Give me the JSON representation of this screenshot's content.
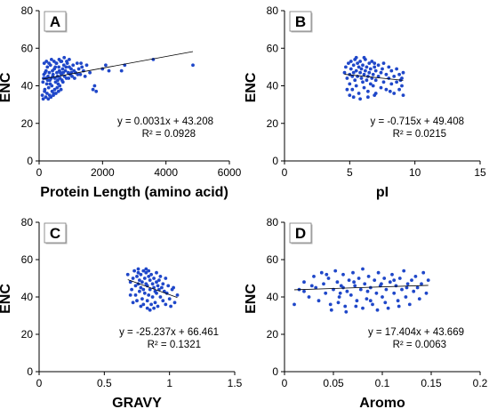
{
  "chart_data": [
    {
      "type": "scatter",
      "panel": "A",
      "ylabel": "ENC",
      "xlabel": "Protein Length (amino acid)",
      "xlim": [
        0,
        6000
      ],
      "xticks": [
        0,
        2000,
        4000,
        6000
      ],
      "ylim": [
        0,
        80
      ],
      "yticks": [
        0,
        20,
        40,
        60,
        80
      ],
      "grid": false,
      "equation": "y = 0.0031x + 43.208",
      "r2": "R² = 0.0928",
      "trendline": {
        "slope": 0.0031,
        "intercept": 43.208
      },
      "points": [
        [
          120,
          42
        ],
        [
          150,
          46
        ],
        [
          180,
          38
        ],
        [
          200,
          44
        ],
        [
          220,
          48
        ],
        [
          240,
          41
        ],
        [
          260,
          50
        ],
        [
          280,
          45
        ],
        [
          300,
          39
        ],
        [
          320,
          47
        ],
        [
          340,
          43
        ],
        [
          360,
          51
        ],
        [
          380,
          44
        ],
        [
          400,
          40
        ],
        [
          420,
          48
        ],
        [
          440,
          46
        ],
        [
          460,
          36
        ],
        [
          480,
          49
        ],
        [
          500,
          44
        ],
        [
          520,
          42
        ],
        [
          540,
          52
        ],
        [
          560,
          47
        ],
        [
          580,
          45
        ],
        [
          600,
          41
        ],
        [
          620,
          50
        ],
        [
          640,
          48
        ],
        [
          660,
          44
        ],
        [
          680,
          53
        ],
        [
          700,
          46
        ],
        [
          720,
          43
        ],
        [
          740,
          49
        ],
        [
          760,
          47
        ],
        [
          780,
          51
        ],
        [
          800,
          45
        ],
        [
          830,
          48
        ],
        [
          860,
          44
        ],
        [
          890,
          52
        ],
        [
          920,
          47
        ],
        [
          950,
          50
        ],
        [
          980,
          46
        ],
        [
          1010,
          49
        ],
        [
          1040,
          45
        ],
        [
          1070,
          51
        ],
        [
          1100,
          48
        ],
        [
          1150,
          47
        ],
        [
          1200,
          52
        ],
        [
          1250,
          49
        ],
        [
          1300,
          46
        ],
        [
          1350,
          50
        ],
        [
          1400,
          48
        ],
        [
          1500,
          51
        ],
        [
          1600,
          47
        ],
        [
          1700,
          38
        ],
        [
          1750,
          40
        ],
        [
          1800,
          37
        ],
        [
          2000,
          49
        ],
        [
          2100,
          51
        ],
        [
          2200,
          48
        ],
        [
          2600,
          48
        ],
        [
          2700,
          51
        ],
        [
          3600,
          54
        ],
        [
          4850,
          51
        ],
        [
          100,
          35
        ],
        [
          130,
          33
        ],
        [
          170,
          37
        ],
        [
          210,
          34
        ],
        [
          250,
          36
        ],
        [
          290,
          33
        ],
        [
          330,
          35
        ],
        [
          370,
          34
        ],
        [
          410,
          37
        ],
        [
          450,
          35
        ],
        [
          490,
          38
        ],
        [
          530,
          36
        ],
        [
          570,
          39
        ],
        [
          610,
          37
        ],
        [
          650,
          40
        ],
        [
          690,
          38
        ],
        [
          160,
          52
        ],
        [
          230,
          53
        ],
        [
          310,
          52
        ],
        [
          390,
          54
        ],
        [
          470,
          53
        ],
        [
          550,
          52
        ],
        [
          630,
          54
        ],
        [
          710,
          53
        ],
        [
          790,
          55
        ],
        [
          870,
          53
        ],
        [
          950,
          54
        ],
        [
          140,
          44
        ],
        [
          190,
          47
        ],
        [
          270,
          43
        ],
        [
          350,
          41
        ],
        [
          430,
          45
        ],
        [
          510,
          50
        ],
        [
          590,
          43
        ],
        [
          670,
          47
        ],
        [
          750,
          42
        ],
        [
          850,
          50
        ],
        [
          930,
          44
        ],
        [
          1020,
          47
        ],
        [
          1120,
          44
        ],
        [
          1220,
          46
        ],
        [
          1320,
          52
        ],
        [
          1450,
          45
        ]
      ]
    },
    {
      "type": "scatter",
      "panel": "B",
      "ylabel": "ENC",
      "xlabel": "pI",
      "xlim": [
        0,
        15
      ],
      "xticks": [
        0,
        5,
        10,
        15
      ],
      "ylim": [
        0,
        80
      ],
      "yticks": [
        0,
        20,
        40,
        60,
        80
      ],
      "grid": false,
      "equation": "y = -0.715x + 49.408",
      "r2": "R² = 0.0215",
      "trendline": {
        "slope": -0.715,
        "intercept": 49.408
      },
      "points": [
        [
          4.6,
          47
        ],
        [
          4.7,
          50
        ],
        [
          4.8,
          44
        ],
        [
          4.9,
          52
        ],
        [
          5.0,
          46
        ],
        [
          5.0,
          41
        ],
        [
          5.1,
          49
        ],
        [
          5.1,
          53
        ],
        [
          5.2,
          45
        ],
        [
          5.2,
          38
        ],
        [
          5.3,
          51
        ],
        [
          5.3,
          47
        ],
        [
          5.4,
          43
        ],
        [
          5.4,
          54
        ],
        [
          5.5,
          48
        ],
        [
          5.5,
          40
        ],
        [
          5.6,
          52
        ],
        [
          5.6,
          45
        ],
        [
          5.7,
          50
        ],
        [
          5.7,
          36
        ],
        [
          5.8,
          47
        ],
        [
          5.8,
          53
        ],
        [
          5.9,
          44
        ],
        [
          5.9,
          49
        ],
        [
          6.0,
          42
        ],
        [
          6.0,
          51
        ],
        [
          6.1,
          46
        ],
        [
          6.1,
          39
        ],
        [
          6.2,
          48
        ],
        [
          6.2,
          54
        ],
        [
          6.3,
          43
        ],
        [
          6.3,
          50
        ],
        [
          6.4,
          45
        ],
        [
          6.4,
          37
        ],
        [
          6.5,
          52
        ],
        [
          6.5,
          47
        ],
        [
          6.6,
          41
        ],
        [
          6.6,
          49
        ],
        [
          6.7,
          44
        ],
        [
          6.7,
          53
        ],
        [
          6.8,
          46
        ],
        [
          6.8,
          40
        ],
        [
          6.9,
          50
        ],
        [
          6.9,
          35
        ],
        [
          7.0,
          48
        ],
        [
          7.0,
          43
        ],
        [
          7.2,
          51
        ],
        [
          7.2,
          45
        ],
        [
          7.4,
          39
        ],
        [
          7.4,
          47
        ],
        [
          7.6,
          52
        ],
        [
          7.6,
          42
        ],
        [
          7.8,
          46
        ],
        [
          7.8,
          38
        ],
        [
          8.0,
          50
        ],
        [
          8.0,
          44
        ],
        [
          8.2,
          41
        ],
        [
          8.2,
          48
        ],
        [
          8.4,
          36
        ],
        [
          8.4,
          45
        ],
        [
          8.6,
          49
        ],
        [
          8.6,
          42
        ],
        [
          8.8,
          46
        ],
        [
          8.8,
          38
        ],
        [
          9.0,
          44
        ],
        [
          9.0,
          40
        ],
        [
          9.1,
          35
        ],
        [
          9.1,
          47
        ],
        [
          5.3,
          34
        ],
        [
          5.8,
          33
        ],
        [
          6.4,
          34
        ],
        [
          7.0,
          36
        ],
        [
          5.5,
          55
        ],
        [
          6.1,
          55
        ],
        [
          4.8,
          38
        ],
        [
          5.0,
          35
        ],
        [
          6.9,
          52
        ],
        [
          7.5,
          49
        ],
        [
          8.1,
          37
        ],
        [
          8.9,
          43
        ]
      ]
    },
    {
      "type": "scatter",
      "panel": "C",
      "ylabel": "ENC",
      "xlabel": "GRAVY",
      "xlim": [
        0,
        1.5
      ],
      "xticks": [
        0,
        0.5,
        1,
        1.5
      ],
      "ylim": [
        0,
        80
      ],
      "yticks": [
        0,
        20,
        40,
        60,
        80
      ],
      "grid": false,
      "equation": "y = -25.237x + 66.461",
      "r2": "R² = 0.1321",
      "trendline": {
        "slope": -25.237,
        "intercept": 66.461
      },
      "points": [
        [
          0.68,
          52
        ],
        [
          0.7,
          48
        ],
        [
          0.71,
          44
        ],
        [
          0.72,
          50
        ],
        [
          0.73,
          54
        ],
        [
          0.74,
          46
        ],
        [
          0.74,
          41
        ],
        [
          0.75,
          51
        ],
        [
          0.76,
          47
        ],
        [
          0.76,
          53
        ],
        [
          0.77,
          43
        ],
        [
          0.77,
          49
        ],
        [
          0.78,
          52
        ],
        [
          0.78,
          45
        ],
        [
          0.79,
          39
        ],
        [
          0.79,
          48
        ],
        [
          0.8,
          54
        ],
        [
          0.8,
          44
        ],
        [
          0.81,
          50
        ],
        [
          0.81,
          42
        ],
        [
          0.82,
          47
        ],
        [
          0.82,
          53
        ],
        [
          0.83,
          38
        ],
        [
          0.83,
          46
        ],
        [
          0.84,
          51
        ],
        [
          0.84,
          41
        ],
        [
          0.85,
          49
        ],
        [
          0.85,
          44
        ],
        [
          0.86,
          36
        ],
        [
          0.86,
          52
        ],
        [
          0.87,
          47
        ],
        [
          0.87,
          40
        ],
        [
          0.88,
          45
        ],
        [
          0.88,
          50
        ],
        [
          0.89,
          43
        ],
        [
          0.89,
          37
        ],
        [
          0.9,
          48
        ],
        [
          0.9,
          42
        ],
        [
          0.91,
          46
        ],
        [
          0.91,
          35
        ],
        [
          0.92,
          44
        ],
        [
          0.92,
          49
        ],
        [
          0.93,
          40
        ],
        [
          0.94,
          45
        ],
        [
          0.95,
          38
        ],
        [
          0.96,
          43
        ],
        [
          0.97,
          36
        ],
        [
          0.98,
          42
        ],
        [
          1.0,
          39
        ],
        [
          1.02,
          44
        ],
        [
          1.04,
          37
        ],
        [
          1.06,
          41
        ],
        [
          0.75,
          38
        ],
        [
          0.78,
          35
        ],
        [
          0.8,
          36
        ],
        [
          0.83,
          34
        ],
        [
          0.85,
          33
        ],
        [
          0.88,
          34
        ],
        [
          0.7,
          41
        ],
        [
          0.72,
          37
        ],
        [
          0.93,
          51
        ],
        [
          0.95,
          47
        ],
        [
          0.97,
          50
        ],
        [
          0.99,
          46
        ],
        [
          0.76,
          55
        ],
        [
          0.82,
          55
        ],
        [
          0.84,
          54
        ],
        [
          0.9,
          53
        ],
        [
          1.01,
          35
        ],
        [
          1.03,
          45
        ]
      ]
    },
    {
      "type": "scatter",
      "panel": "D",
      "ylabel": "ENC",
      "xlabel": "Aromo",
      "xlim": [
        0,
        0.2
      ],
      "xticks": [
        0,
        0.05,
        0.1,
        0.15,
        0.2
      ],
      "ylim": [
        0,
        80
      ],
      "yticks": [
        0,
        20,
        40,
        60,
        80
      ],
      "grid": false,
      "equation": "y = 17.404x + 43.669",
      "r2": "R² = 0.0063",
      "trendline": {
        "slope": 17.404,
        "intercept": 43.669
      },
      "points": [
        [
          0.01,
          36
        ],
        [
          0.015,
          44
        ],
        [
          0.02,
          48
        ],
        [
          0.025,
          40
        ],
        [
          0.03,
          51
        ],
        [
          0.032,
          45
        ],
        [
          0.035,
          38
        ],
        [
          0.038,
          53
        ],
        [
          0.04,
          47
        ],
        [
          0.042,
          42
        ],
        [
          0.045,
          50
        ],
        [
          0.047,
          36
        ],
        [
          0.05,
          44
        ],
        [
          0.052,
          54
        ],
        [
          0.054,
          48
        ],
        [
          0.056,
          40
        ],
        [
          0.058,
          46
        ],
        [
          0.06,
          52
        ],
        [
          0.062,
          35
        ],
        [
          0.064,
          43
        ],
        [
          0.066,
          49
        ],
        [
          0.068,
          41
        ],
        [
          0.07,
          53
        ],
        [
          0.072,
          46
        ],
        [
          0.074,
          38
        ],
        [
          0.076,
          50
        ],
        [
          0.078,
          44
        ],
        [
          0.08,
          55
        ],
        [
          0.082,
          47
        ],
        [
          0.084,
          39
        ],
        [
          0.086,
          51
        ],
        [
          0.088,
          45
        ],
        [
          0.09,
          36
        ],
        [
          0.092,
          49
        ],
        [
          0.094,
          42
        ],
        [
          0.096,
          53
        ],
        [
          0.098,
          46
        ],
        [
          0.1,
          40
        ],
        [
          0.102,
          50
        ],
        [
          0.104,
          44
        ],
        [
          0.106,
          34
        ],
        [
          0.108,
          48
        ],
        [
          0.11,
          52
        ],
        [
          0.112,
          42
        ],
        [
          0.114,
          46
        ],
        [
          0.116,
          38
        ],
        [
          0.118,
          50
        ],
        [
          0.12,
          44
        ],
        [
          0.122,
          54
        ],
        [
          0.124,
          40
        ],
        [
          0.126,
          47
        ],
        [
          0.128,
          36
        ],
        [
          0.13,
          49
        ],
        [
          0.132,
          43
        ],
        [
          0.134,
          51
        ],
        [
          0.136,
          45
        ],
        [
          0.138,
          39
        ],
        [
          0.14,
          47
        ],
        [
          0.142,
          53
        ],
        [
          0.145,
          42
        ],
        [
          0.147,
          49
        ],
        [
          0.048,
          33
        ],
        [
          0.063,
          32
        ],
        [
          0.08,
          34
        ],
        [
          0.095,
          33
        ],
        [
          0.055,
          37
        ],
        [
          0.073,
          35
        ],
        [
          0.088,
          38
        ],
        [
          0.103,
          37
        ],
        [
          0.117,
          35
        ],
        [
          0.06,
          45
        ],
        [
          0.071,
          48
        ],
        [
          0.085,
          43
        ],
        [
          0.099,
          47
        ],
        [
          0.112,
          49
        ],
        [
          0.125,
          45
        ],
        [
          0.02,
          43
        ],
        [
          0.028,
          46
        ],
        [
          0.043,
          52
        ],
        [
          0.057,
          42
        ]
      ]
    }
  ],
  "colors": {
    "points": "#1f47c9",
    "trendline": "#000000",
    "axes": "#000000"
  }
}
